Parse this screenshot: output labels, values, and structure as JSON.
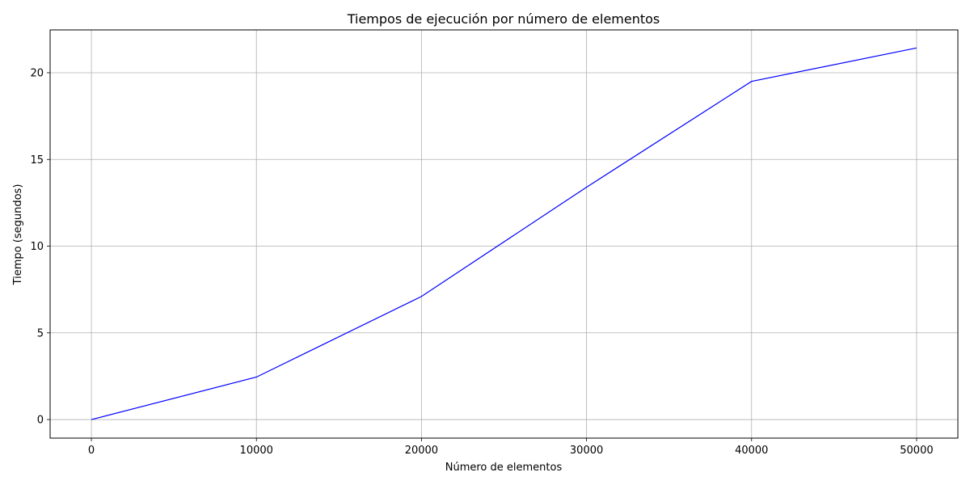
{
  "chart_data": {
    "type": "line",
    "title": "Tiempos de ejecución por número de elementos",
    "xlabel": "Número de elementos",
    "ylabel": "Tiempo (segundos)",
    "xlim": [
      -2500,
      52500
    ],
    "ylim": [
      -1.07,
      22.47
    ],
    "x_ticks": [
      0,
      10000,
      20000,
      30000,
      40000,
      50000
    ],
    "y_ticks": [
      0,
      5,
      10,
      15,
      20
    ],
    "grid": true,
    "series": [
      {
        "color": "#0000ff",
        "x": [
          0,
          10000,
          20000,
          30000,
          40000,
          50000
        ],
        "y": [
          0.0,
          2.45,
          7.1,
          13.4,
          19.5,
          21.43
        ]
      }
    ]
  }
}
